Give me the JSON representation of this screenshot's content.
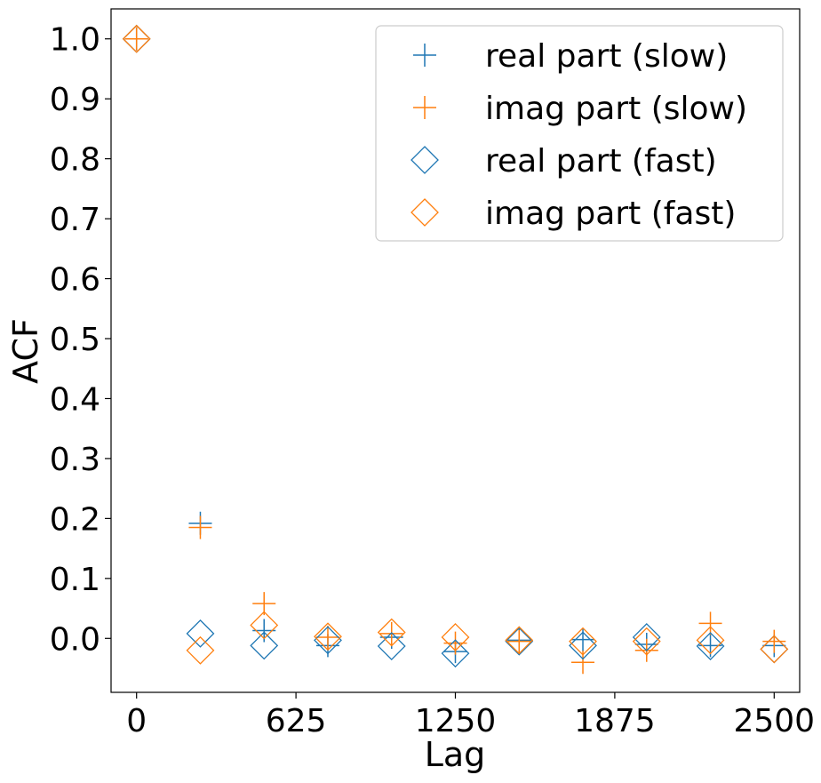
{
  "chart_data": {
    "type": "scatter",
    "xlabel": "Lag",
    "ylabel": "ACF",
    "xlim": [
      -100,
      2600
    ],
    "ylim": [
      -0.09,
      1.05
    ],
    "x_ticks": [
      0,
      625,
      1250,
      1875,
      2500
    ],
    "y_ticks": [
      0.0,
      0.1,
      0.2,
      0.3,
      0.4,
      0.5,
      0.6,
      0.7,
      0.8,
      0.9,
      1.0
    ],
    "y_tick_labels": [
      "0.0",
      "0.1",
      "0.2",
      "0.3",
      "0.4",
      "0.5",
      "0.6",
      "0.7",
      "0.8",
      "0.9",
      "1.0"
    ],
    "x_tick_labels": [
      "0",
      "625",
      "1250",
      "1875",
      "2500"
    ],
    "legend_position": "top-right",
    "grid": false,
    "x": [
      0,
      250,
      500,
      750,
      1000,
      1250,
      1500,
      1750,
      2000,
      2250,
      2500
    ],
    "series": [
      {
        "name": "real part (slow)",
        "marker": "plus",
        "color": "#1f77b4",
        "values": [
          1.0,
          0.192,
          0.013,
          -0.012,
          0.002,
          -0.022,
          -0.003,
          -0.002,
          -0.01,
          -0.012,
          -0.012
        ]
      },
      {
        "name": "imag part (slow)",
        "marker": "plus",
        "color": "#ff7f0e",
        "values": [
          1.0,
          0.185,
          0.058,
          0.002,
          0.008,
          -0.008,
          -0.005,
          -0.04,
          -0.02,
          0.025,
          -0.005
        ]
      },
      {
        "name": "real part (fast)",
        "marker": "diamond",
        "color": "#1f77b4",
        "values": [
          1.0,
          0.008,
          -0.012,
          -0.003,
          -0.013,
          -0.025,
          -0.005,
          -0.012,
          0.002,
          -0.013,
          -0.018
        ]
      },
      {
        "name": "imag part (fast)",
        "marker": "diamond",
        "color": "#ff7f0e",
        "values": [
          1.0,
          -0.02,
          0.022,
          0.003,
          0.01,
          0.002,
          -0.003,
          -0.005,
          -0.005,
          -0.003,
          -0.018
        ]
      }
    ]
  }
}
